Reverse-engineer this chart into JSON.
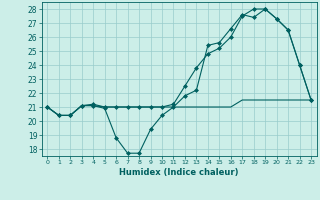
{
  "xlabel": "Humidex (Indice chaleur)",
  "x": [
    0,
    1,
    2,
    3,
    4,
    5,
    6,
    7,
    8,
    9,
    10,
    11,
    12,
    13,
    14,
    15,
    16,
    17,
    18,
    19,
    20,
    21,
    22,
    23
  ],
  "line1": [
    21.0,
    20.4,
    20.4,
    21.1,
    21.1,
    20.9,
    18.8,
    17.7,
    17.7,
    19.4,
    20.4,
    21.0,
    21.8,
    22.2,
    25.4,
    25.6,
    26.6,
    27.6,
    27.4,
    28.0,
    27.3,
    26.5,
    24.0,
    21.5
  ],
  "line2": [
    21.0,
    20.4,
    20.4,
    21.1,
    21.1,
    21.0,
    21.0,
    21.0,
    21.0,
    21.0,
    21.0,
    21.0,
    21.0,
    21.0,
    21.0,
    21.0,
    21.0,
    21.5,
    21.5,
    21.5,
    21.5,
    21.5,
    21.5,
    21.5
  ],
  "line3": [
    21.0,
    20.4,
    20.4,
    21.1,
    21.2,
    21.0,
    21.0,
    21.0,
    21.0,
    21.0,
    21.0,
    21.2,
    22.5,
    23.8,
    24.8,
    25.2,
    26.0,
    27.5,
    28.0,
    28.0,
    27.3,
    26.5,
    24.0,
    21.5
  ],
  "color": "#006060",
  "bg_color": "#cceee8",
  "grid_color": "#99cccc",
  "ylim": [
    17.5,
    28.5
  ],
  "yticks": [
    18,
    19,
    20,
    21,
    22,
    23,
    24,
    25,
    26,
    27,
    28
  ],
  "xticks": [
    0,
    1,
    2,
    3,
    4,
    5,
    6,
    7,
    8,
    9,
    10,
    11,
    12,
    13,
    14,
    15,
    16,
    17,
    18,
    19,
    20,
    21,
    22,
    23
  ],
  "marker": "D",
  "markersize": 2.0,
  "linewidth": 0.8
}
